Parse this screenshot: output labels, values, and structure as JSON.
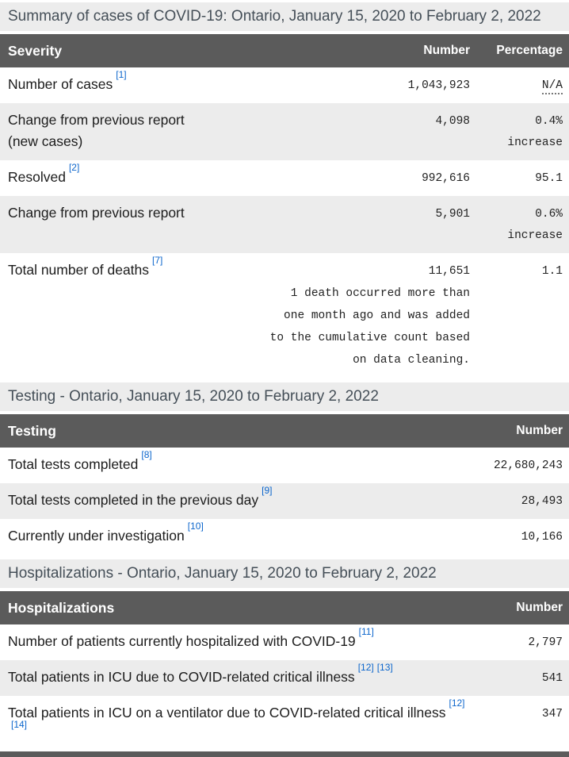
{
  "colors": {
    "header_bg": "#5b5b5b",
    "header_text": "#ffffff",
    "zebra_bg": "#ececec",
    "caption_bg": "#ececec",
    "caption_text": "#454f58",
    "footnote_link": "#0c66cc",
    "body_text": "#1c1c1c"
  },
  "sections": [
    {
      "caption": "Summary of cases of COVID-19: Ontario, January 15, 2020 to February 2, 2022",
      "columns": [
        "Severity",
        "Number",
        "Percentage"
      ],
      "rows": [
        {
          "label": "Number of cases",
          "refs": [
            "[1]"
          ],
          "number": "1,043,923",
          "pct": "N/A",
          "pct_abbr": true
        },
        {
          "label": "Change from previous report",
          "label2": "(new cases)",
          "refs": [],
          "number": "4,098",
          "pct": "0.4%",
          "pct2": "increase"
        },
        {
          "label": "Resolved",
          "refs": [
            "[2]"
          ],
          "number": "992,616",
          "pct": "95.1"
        },
        {
          "label": "Change from previous report",
          "refs": [],
          "number": "5,901",
          "pct": "0.6%",
          "pct2": "increase"
        },
        {
          "label": "Total number of deaths",
          "refs": [
            "[7]"
          ],
          "number": "11,651",
          "note": "1 death occurred more than one month ago and was added to the cumulative count based on data cleaning.",
          "pct": "1.1"
        }
      ]
    },
    {
      "caption": "Testing - Ontario, January 15, 2020 to February 2, 2022",
      "columns": [
        "Testing",
        "Number"
      ],
      "rows": [
        {
          "label": "Total tests completed",
          "refs": [
            "[8]"
          ],
          "number": "22,680,243"
        },
        {
          "label": "Total tests completed in the previous day",
          "refs": [
            "[9]"
          ],
          "number": "28,493"
        },
        {
          "label": "Currently under investigation",
          "refs": [
            "[10]"
          ],
          "number": "10,166"
        }
      ]
    },
    {
      "caption": "Hospitalizations - Ontario, January 15, 2020 to February 2, 2022",
      "columns": [
        "Hospitalizations",
        "Number"
      ],
      "rows": [
        {
          "label": "Number of patients currently hospitalized with COVID-19",
          "refs": [
            "[11]"
          ],
          "number": "2,797"
        },
        {
          "label": "Total patients in ICU due to COVID-related critical illness",
          "refs": [
            "[12]",
            "[13]"
          ],
          "number": "541"
        },
        {
          "label": "Total patients in ICU on a ventilator due to COVID-related critical illness",
          "refs": [
            "[12]",
            "[14]"
          ],
          "number": "347"
        }
      ]
    }
  ]
}
